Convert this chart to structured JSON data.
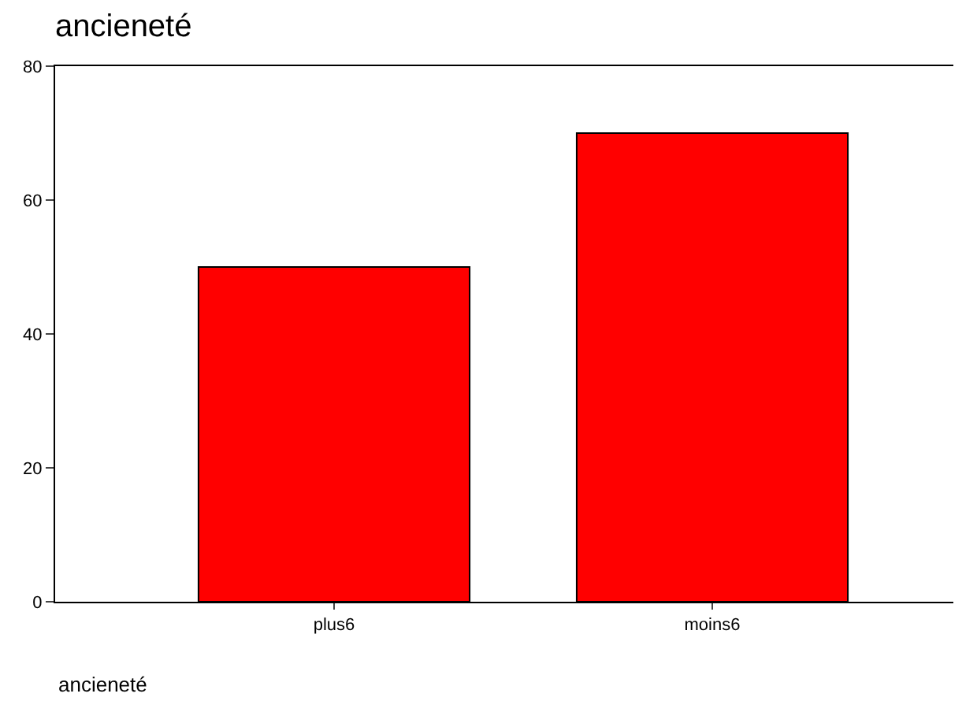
{
  "chart_data": {
    "type": "bar",
    "title": "ancieneté",
    "xlabel": "ancieneté",
    "categories": [
      "plus6",
      "moins6"
    ],
    "values": [
      50,
      70
    ],
    "color": "#ff0000",
    "ylim": [
      0,
      80
    ],
    "yticks": [
      0,
      20,
      40,
      60,
      80
    ],
    "grid": false
  }
}
